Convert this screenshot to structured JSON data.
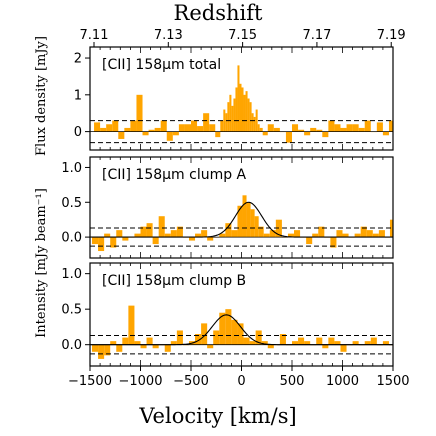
{
  "figure": {
    "top_axis_title": "Redshift",
    "top_ticks": [
      "7.11",
      "7.13",
      "7.15",
      "7.17",
      "7.19"
    ],
    "top_tick_z": [
      7.11,
      7.13,
      7.15,
      7.17,
      7.19
    ],
    "x_axis_label": "Velocity [km/s]",
    "x_ticks": [
      "−1500",
      "−1000",
      "−500",
      "0",
      "500",
      "1000",
      "1500"
    ],
    "x_tick_values": [
      -1500,
      -1000,
      -500,
      0,
      500,
      1000,
      1500
    ],
    "xlim": [
      -1500,
      1500
    ],
    "bar_color": "#ffa500",
    "z_ref": 7.1497
  },
  "chart_data": [
    {
      "type": "bar",
      "label": "[CII] 158μm total",
      "ylabel": "Flux density [mJy]",
      "ylim": [
        -0.5,
        2.3
      ],
      "yticks": [
        "0",
        "1",
        "2"
      ],
      "ytick_values": [
        0,
        1,
        2
      ],
      "noise_levels": [
        0.3,
        -0.3
      ],
      "x": [
        -1430,
        -1370,
        -1310,
        -1250,
        -1190,
        -1130,
        -1070,
        -1010,
        -950,
        -890,
        -830,
        -770,
        -710,
        -650,
        -590,
        -530,
        -470,
        -410,
        -350,
        -290,
        -230,
        -190,
        -170,
        -150,
        -130,
        -110,
        -90,
        -70,
        -50,
        -30,
        -10,
        10,
        30,
        50,
        70,
        90,
        110,
        130,
        150,
        170,
        190,
        230,
        290,
        350,
        410,
        470,
        530,
        590,
        650,
        710,
        770,
        830,
        890,
        950,
        1010,
        1070,
        1130,
        1190,
        1250,
        1310,
        1370,
        1430,
        1490
      ],
      "values": [
        0.25,
        0.1,
        0.2,
        0.3,
        -0.2,
        0.1,
        0.3,
        1.0,
        -0.1,
        0.05,
        0.1,
        0.3,
        -0.25,
        -0.1,
        0.2,
        0.2,
        0.3,
        0.15,
        0.5,
        0.2,
        -0.15,
        0.3,
        0.6,
        0.5,
        0.8,
        1.0,
        0.7,
        0.9,
        1.2,
        1.8,
        1.3,
        1.2,
        1.0,
        1.1,
        0.9,
        0.8,
        0.5,
        0.4,
        0.6,
        0.2,
        0.1,
        -0.1,
        0.2,
        0.1,
        0.0,
        -0.3,
        0.2,
        0.05,
        -0.1,
        0.1,
        0.05,
        -0.15,
        0.3,
        0.2,
        0.1,
        0.2,
        0.2,
        0.1,
        0.3,
        0.0,
        0.25,
        -0.1,
        0.3
      ]
    },
    {
      "type": "bar",
      "label": "[CII] 158μm clump A",
      "ylabel": "Intensity [mJy beam⁻¹]",
      "ylim": [
        -0.3,
        1.15
      ],
      "yticks": [
        "0.0",
        "0.5",
        "1.0"
      ],
      "ytick_values": [
        0.0,
        0.5,
        1.0
      ],
      "noise_levels": [
        0.13,
        -0.13
      ],
      "fit": {
        "amp": 0.5,
        "center": 70,
        "sigma": 130
      },
      "x": [
        -1450,
        -1390,
        -1330,
        -1270,
        -1210,
        -1150,
        -1090,
        -1030,
        -970,
        -910,
        -850,
        -790,
        -730,
        -670,
        -610,
        -550,
        -490,
        -430,
        -370,
        -310,
        -250,
        -190,
        -130,
        -70,
        -10,
        30,
        70,
        110,
        150,
        190,
        250,
        310,
        370,
        430,
        490,
        550,
        610,
        670,
        730,
        790,
        850,
        910,
        970,
        1030,
        1090,
        1150,
        1210,
        1270,
        1330,
        1390,
        1450,
        1490
      ],
      "values": [
        -0.1,
        -0.2,
        0.05,
        -0.15,
        0.1,
        -0.05,
        0.0,
        0.05,
        0.15,
        0.2,
        -0.1,
        0.3,
        0.05,
        0.1,
        0.15,
        0.0,
        -0.05,
        0.05,
        0.1,
        -0.05,
        0.0,
        0.05,
        0.2,
        0.1,
        0.45,
        0.6,
        0.5,
        0.4,
        0.3,
        0.15,
        0.05,
        0.1,
        0.25,
        0.0,
        0.05,
        0.1,
        0.0,
        -0.1,
        0.05,
        0.15,
        0.0,
        -0.15,
        0.1,
        0.05,
        0.0,
        0.05,
        0.15,
        0.1,
        0.05,
        0.1,
        0.0,
        0.25
      ]
    },
    {
      "type": "bar",
      "label": "[CII] 158μm clump B",
      "ylabel": "",
      "ylim": [
        -0.3,
        1.15
      ],
      "yticks": [
        "0.0",
        "0.5",
        "1.0"
      ],
      "ytick_values": [
        0.0,
        0.5,
        1.0
      ],
      "noise_levels": [
        0.13,
        -0.13
      ],
      "fit": {
        "amp": 0.42,
        "center": -150,
        "sigma": 140
      },
      "x": [
        -1450,
        -1390,
        -1330,
        -1270,
        -1210,
        -1150,
        -1090,
        -1030,
        -970,
        -910,
        -850,
        -790,
        -730,
        -670,
        -610,
        -550,
        -490,
        -430,
        -370,
        -310,
        -250,
        -190,
        -130,
        -70,
        -10,
        50,
        110,
        170,
        230,
        290,
        350,
        410,
        470,
        530,
        590,
        650,
        710,
        770,
        830,
        890,
        950,
        1010,
        1070,
        1130,
        1190,
        1250,
        1310,
        1370,
        1430,
        1490
      ],
      "values": [
        -0.1,
        -0.2,
        -0.15,
        0.05,
        -0.1,
        0.1,
        0.55,
        0.05,
        -0.05,
        0.1,
        -0.05,
        0.0,
        -0.1,
        0.05,
        0.2,
        0.0,
        0.05,
        0.15,
        0.3,
        -0.05,
        0.2,
        0.45,
        0.5,
        0.35,
        0.3,
        0.1,
        0.05,
        0.2,
        0.05,
        -0.05,
        0.0,
        0.15,
        0.0,
        0.05,
        0.1,
        0.05,
        0.0,
        0.1,
        -0.05,
        0.1,
        0.05,
        -0.1,
        0.0,
        0.05,
        0.0,
        0.05,
        0.1,
        0.0,
        0.05,
        0.0
      ]
    }
  ]
}
